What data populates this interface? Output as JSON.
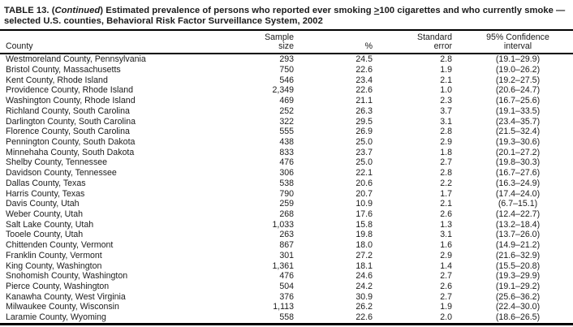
{
  "document": {
    "title": {
      "part1": "TABLE 13. (",
      "continued": "Continued",
      "part2": ") Estimated prevalence of persons who reported ever smoking ",
      "geq_symbol": ">",
      "part3": "100 cigarettes and who currently smoke —",
      "line2": "selected U.S. counties, Behavioral Risk Factor Surveillance System, 2002"
    },
    "table": {
      "headers": {
        "county": "County",
        "sample_size_line1": "Sample",
        "sample_size_line2": "size",
        "percent": "%",
        "standard_error_line1": "Standard",
        "standard_error_line2": "error",
        "confidence_line1": "95% Confidence",
        "confidence_line2": "interval"
      },
      "rows": [
        {
          "county": "Westmoreland County, Pennsylvania",
          "sample_size": "293",
          "percent": "24.5",
          "standard_error": "2.8",
          "confidence_interval": "(19.1–29.9)"
        },
        {
          "county": "Bristol County, Massachusetts",
          "sample_size": "750",
          "percent": "22.6",
          "standard_error": "1.9",
          "confidence_interval": "(19.0–26.2)"
        },
        {
          "county": "Kent County, Rhode Island",
          "sample_size": "546",
          "percent": "23.4",
          "standard_error": "2.1",
          "confidence_interval": "(19.2–27.5)"
        },
        {
          "county": "Providence County, Rhode Island",
          "sample_size": "2,349",
          "percent": "22.6",
          "standard_error": "1.0",
          "confidence_interval": "(20.6–24.7)"
        },
        {
          "county": "Washington County, Rhode Island",
          "sample_size": "469",
          "percent": "21.1",
          "standard_error": "2.3",
          "confidence_interval": "(16.7–25.6)"
        },
        {
          "county": "Richland County, South Carolina",
          "sample_size": "252",
          "percent": "26.3",
          "standard_error": "3.7",
          "confidence_interval": "(19.1–33.5)"
        },
        {
          "county": "Darlington County, South Carolina",
          "sample_size": "322",
          "percent": "29.5",
          "standard_error": "3.1",
          "confidence_interval": "(23.4–35.7)"
        },
        {
          "county": "Florence County, South Carolina",
          "sample_size": "555",
          "percent": "26.9",
          "standard_error": "2.8",
          "confidence_interval": "(21.5–32.4)"
        },
        {
          "county": "Pennington County, South Dakota",
          "sample_size": "438",
          "percent": "25.0",
          "standard_error": "2.9",
          "confidence_interval": "(19.3–30.6)"
        },
        {
          "county": "Minnehaha County, South Dakota",
          "sample_size": "833",
          "percent": "23.7",
          "standard_error": "1.8",
          "confidence_interval": "(20.1–27.2)"
        },
        {
          "county": "Shelby County, Tennessee",
          "sample_size": "476",
          "percent": "25.0",
          "standard_error": "2.7",
          "confidence_interval": "(19.8–30.3)"
        },
        {
          "county": "Davidson County, Tennessee",
          "sample_size": "306",
          "percent": "22.1",
          "standard_error": "2.8",
          "confidence_interval": "(16.7–27.6)"
        },
        {
          "county": "Dallas County, Texas",
          "sample_size": "538",
          "percent": "20.6",
          "standard_error": "2.2",
          "confidence_interval": "(16.3–24.9)"
        },
        {
          "county": "Harris County, Texas",
          "sample_size": "790",
          "percent": "20.7",
          "standard_error": "1.7",
          "confidence_interval": "(17.4–24.0)"
        },
        {
          "county": "Davis County, Utah",
          "sample_size": "259",
          "percent": "10.9",
          "standard_error": "2.1",
          "confidence_interval": "(6.7–15.1)"
        },
        {
          "county": "Weber County, Utah",
          "sample_size": "268",
          "percent": "17.6",
          "standard_error": "2.6",
          "confidence_interval": "(12.4–22.7)"
        },
        {
          "county": "Salt Lake County, Utah",
          "sample_size": "1,033",
          "percent": "15.8",
          "standard_error": "1.3",
          "confidence_interval": "(13.2–18.4)"
        },
        {
          "county": "Tooele County, Utah",
          "sample_size": "263",
          "percent": "19.8",
          "standard_error": "3.1",
          "confidence_interval": "(13.7–26.0)"
        },
        {
          "county": "Chittenden County, Vermont",
          "sample_size": "867",
          "percent": "18.0",
          "standard_error": "1.6",
          "confidence_interval": "(14.9–21.2)"
        },
        {
          "county": "Franklin County, Vermont",
          "sample_size": "301",
          "percent": "27.2",
          "standard_error": "2.9",
          "confidence_interval": "(21.6–32.9)"
        },
        {
          "county": "King County, Washington",
          "sample_size": "1,361",
          "percent": "18.1",
          "standard_error": "1.4",
          "confidence_interval": "(15.5–20.8)"
        },
        {
          "county": "Snohomish County, Washington",
          "sample_size": "476",
          "percent": "24.6",
          "standard_error": "2.7",
          "confidence_interval": "(19.3–29.9)"
        },
        {
          "county": "Pierce County, Washington",
          "sample_size": "504",
          "percent": "24.2",
          "standard_error": "2.6",
          "confidence_interval": "(19.1–29.2)"
        },
        {
          "county": "Kanawha County, West Virginia",
          "sample_size": "376",
          "percent": "30.9",
          "standard_error": "2.7",
          "confidence_interval": "(25.6–36.2)"
        },
        {
          "county": "Milwaukee County, Wisconsin",
          "sample_size": "1,113",
          "percent": "26.2",
          "standard_error": "1.9",
          "confidence_interval": "(22.4–30.0)"
        },
        {
          "county": "Laramie County, Wyoming",
          "sample_size": "558",
          "percent": "22.6",
          "standard_error": "2.0",
          "confidence_interval": "(18.6–26.5)"
        }
      ]
    }
  }
}
